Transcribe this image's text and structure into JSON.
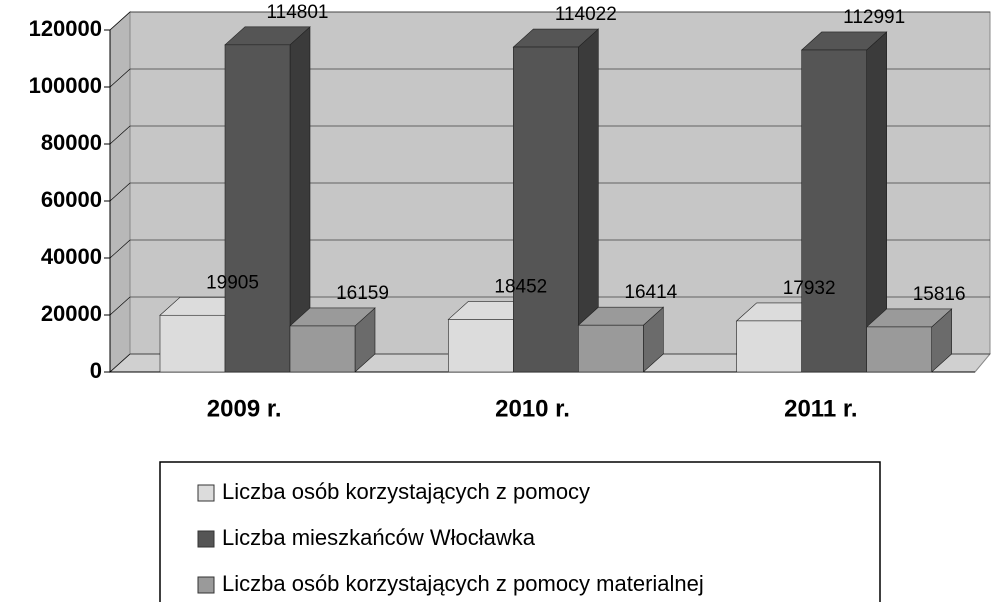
{
  "chart_data": {
    "type": "bar3d",
    "categories": [
      "2009 r.",
      "2010 r.",
      "2011 r."
    ],
    "series": [
      {
        "name": "Liczba osób korzystających z pomocy",
        "color": "#dcdcdc",
        "values": [
          19905,
          18452,
          17932
        ]
      },
      {
        "name": "Liczba mieszkańców Włocławka",
        "color": "#555555",
        "values": [
          114801,
          114022,
          112991
        ]
      },
      {
        "name": "Liczba osób korzystających z pomocy materialnej",
        "color": "#9a9a9a",
        "values": [
          16159,
          16414,
          15816
        ]
      }
    ],
    "ylim": [
      0,
      120000
    ],
    "yticks": [
      0,
      20000,
      40000,
      60000,
      80000,
      100000,
      120000
    ],
    "grid": true
  }
}
